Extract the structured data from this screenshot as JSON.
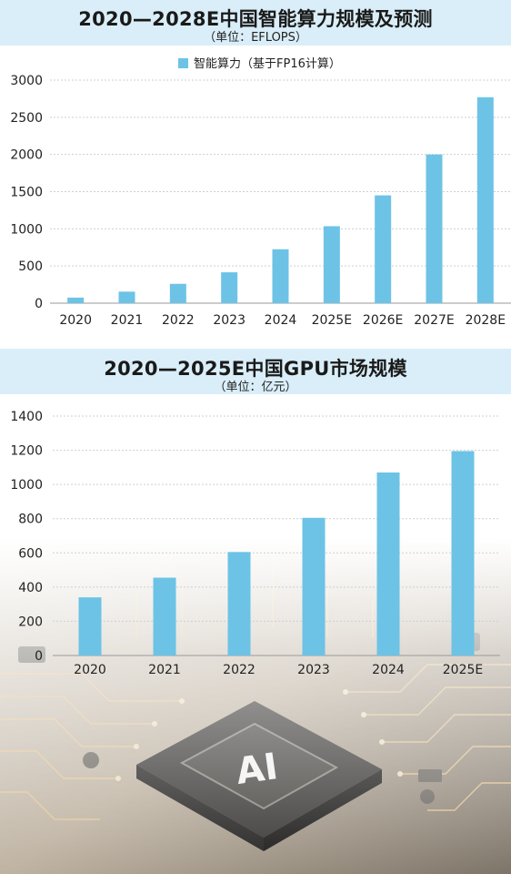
{
  "colors": {
    "bar": "#6cc3e6",
    "header_band": "#d9eef8",
    "axis": "#9a9a9a",
    "grid": "#cfcfcf"
  },
  "chart_data": [
    {
      "type": "bar",
      "title": "2020—2028E中国智能算力规模及预测",
      "subtitle": "（单位：EFLOPS）",
      "legend": "智能算力（基于FP16计算）",
      "legend_position": "top-center",
      "categories": [
        "2020",
        "2021",
        "2022",
        "2023",
        "2024",
        "2025E",
        "2026E",
        "2027E",
        "2028E"
      ],
      "series": [
        {
          "name": "智能算力（基于FP16计算）",
          "values": [
            75,
            155,
            260,
            415,
            725,
            1035,
            1450,
            2000,
            2770
          ]
        }
      ],
      "ylim": [
        0,
        3000
      ],
      "yticks": [
        "0",
        "500",
        "1000",
        "1500",
        "2000",
        "2500",
        "3000"
      ],
      "grid": true
    },
    {
      "type": "bar",
      "title": "2020—2025E中国GPU市场规模",
      "subtitle": "（单位：亿元）",
      "categories": [
        "2020",
        "2021",
        "2022",
        "2023",
        "2024",
        "2025E"
      ],
      "series": [
        {
          "values": [
            340,
            455,
            605,
            805,
            1070,
            1195
          ]
        }
      ],
      "ylim": [
        0,
        1400
      ],
      "yticks": [
        "0",
        "200",
        "400",
        "600",
        "800",
        "1000",
        "1200",
        "1400"
      ],
      "grid": true
    }
  ],
  "decoration": {
    "chip_label": "AI"
  }
}
